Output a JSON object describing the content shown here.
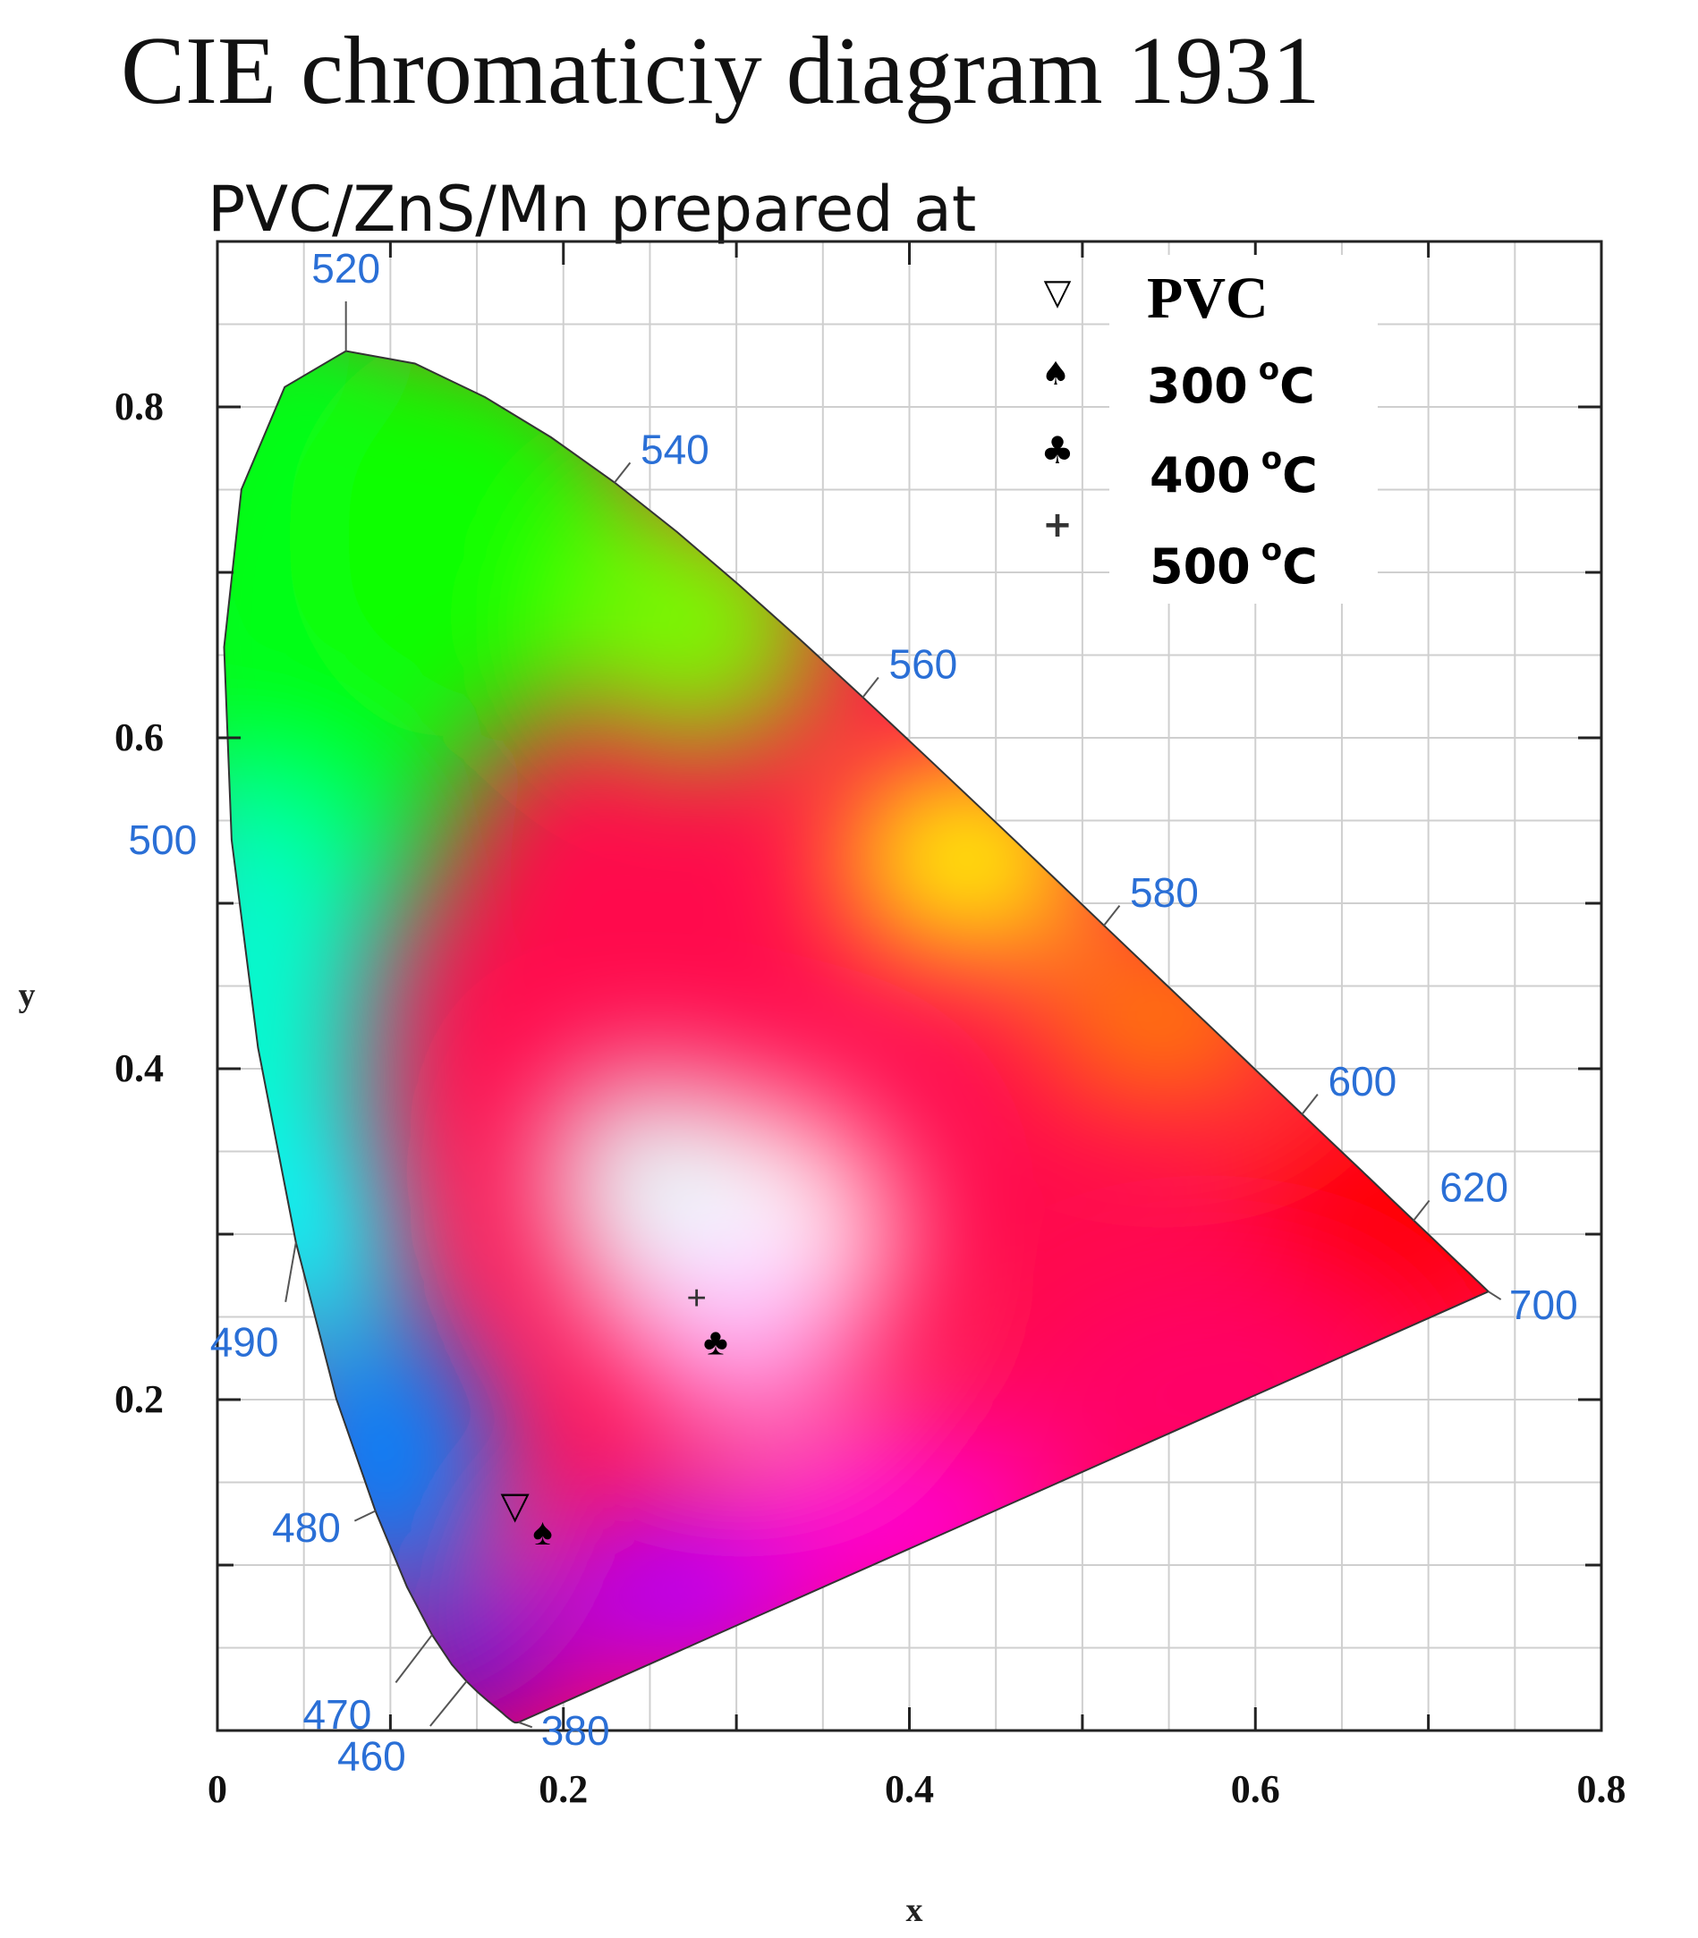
{
  "chart_data": {
    "type": "scatter",
    "title": "CIE chromaticiy diagram 1931",
    "subtitle": "PVC/ZnS/Mn prepared at",
    "xlabel": "x",
    "ylabel": "y",
    "xlim": [
      0,
      0.8
    ],
    "ylim": [
      0,
      0.9
    ],
    "x_ticks": [
      "0",
      "0.2",
      "0.4",
      "0.6",
      "0.8"
    ],
    "y_ticks": [
      "0.2",
      "0.4",
      "0.6",
      "0.8"
    ],
    "grid": true,
    "legend_position": "top-right",
    "spectral_locus_color": "#2a6fd6",
    "spectral_labels": [
      {
        "nm": "380",
        "x": 0.1741,
        "y": 0.005
      },
      {
        "nm": "460",
        "x": 0.144,
        "y": 0.0297
      },
      {
        "nm": "470",
        "x": 0.1241,
        "y": 0.0578
      },
      {
        "nm": "480",
        "x": 0.0913,
        "y": 0.1327
      },
      {
        "nm": "490",
        "x": 0.0454,
        "y": 0.295
      },
      {
        "nm": "500",
        "x": 0.0082,
        "y": 0.5384
      },
      {
        "nm": "520",
        "x": 0.0743,
        "y": 0.8338
      },
      {
        "nm": "540",
        "x": 0.2296,
        "y": 0.7543
      },
      {
        "nm": "560",
        "x": 0.3731,
        "y": 0.6245
      },
      {
        "nm": "580",
        "x": 0.5125,
        "y": 0.4866
      },
      {
        "nm": "600",
        "x": 0.627,
        "y": 0.3725
      },
      {
        "nm": "620",
        "x": 0.6915,
        "y": 0.3083
      },
      {
        "nm": "700",
        "x": 0.7347,
        "y": 0.2653
      }
    ],
    "series": [
      {
        "name": "PVC",
        "marker": "▽",
        "x": [
          0.172
        ],
        "y": [
          0.136
        ]
      },
      {
        "name": "300 °C",
        "marker": "♠",
        "x": [
          0.188
        ],
        "y": [
          0.12
        ]
      },
      {
        "name": "400 °C",
        "marker": "♣",
        "x": [
          0.288
        ],
        "y": [
          0.235
        ]
      },
      {
        "name": "500 °C",
        "marker": "+",
        "x": [
          0.277
        ],
        "y": [
          0.262
        ]
      }
    ]
  },
  "legend": {
    "items": [
      {
        "marker": "▽",
        "label": "PVC",
        "sup": ""
      },
      {
        "marker": "♠",
        "label": "300",
        "sup": "o",
        "unit": "C"
      },
      {
        "marker": "♣",
        "label": "400",
        "sup": "o",
        "unit": "C"
      },
      {
        "marker": "+",
        "label": "500",
        "sup": "o",
        "unit": "C"
      }
    ]
  }
}
